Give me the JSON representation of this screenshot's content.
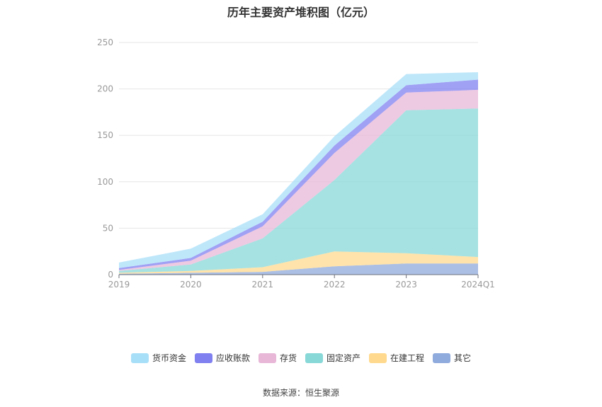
{
  "title": "历年主要资产堆积图（亿元）",
  "source": "数据来源：恒生聚源",
  "chart_data": {
    "type": "area",
    "stacked": true,
    "title": "历年主要资产堆积图（亿元）",
    "categories": [
      "2019",
      "2020",
      "2021",
      "2022",
      "2023",
      "2024Q1"
    ],
    "ylim": [
      0,
      250
    ],
    "yticks": [
      0,
      50,
      100,
      150,
      200,
      250
    ],
    "grid": true,
    "legend_position": "bottom",
    "series": [
      {
        "name": "其它",
        "color": "#8FAADC",
        "values": [
          1,
          2,
          3,
          9,
          12,
          12
        ]
      },
      {
        "name": "在建工程",
        "color": "#FFD98E",
        "values": [
          1,
          2,
          5,
          16,
          11,
          7
        ]
      },
      {
        "name": "固定资产",
        "color": "#88D8D8",
        "values": [
          2,
          7,
          31,
          77,
          154,
          160
        ]
      },
      {
        "name": "存货",
        "color": "#E8B7D8",
        "values": [
          1,
          4,
          13,
          29,
          19,
          20
        ]
      },
      {
        "name": "应收账款",
        "color": "#8080F0",
        "values": [
          2,
          3,
          5,
          8,
          8,
          11
        ]
      },
      {
        "name": "货币资金",
        "color": "#A8DFF8",
        "values": [
          6,
          10,
          8,
          10,
          12,
          8
        ]
      }
    ],
    "legend_order": [
      "货币资金",
      "应收账款",
      "存货",
      "固定资产",
      "在建工程",
      "其它"
    ]
  }
}
